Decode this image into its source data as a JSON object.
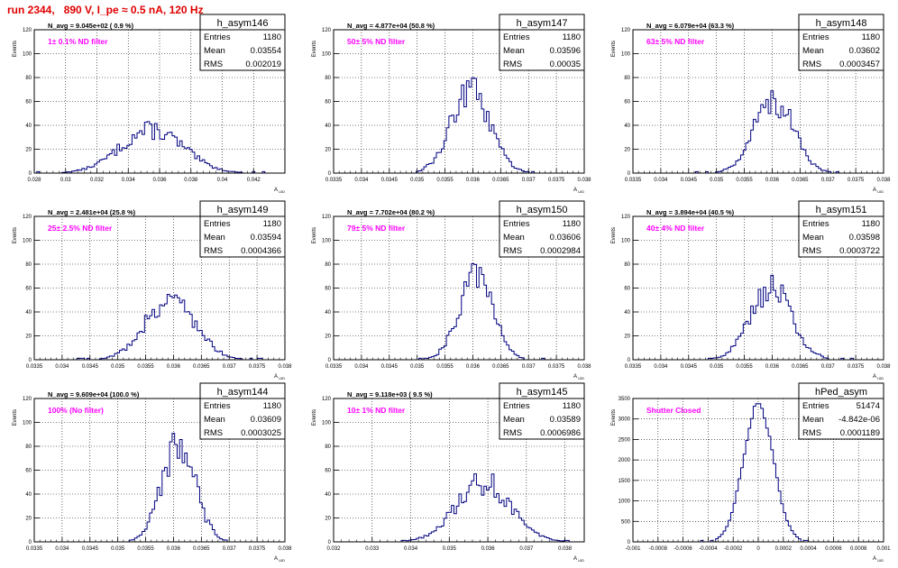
{
  "title": "run 2344,   890 V, I_pe ≈ 0.5 nA, 120 Hz",
  "y_axis_label": "Events",
  "x_axis_label": "A",
  "x_axis_subscript": "UID",
  "stat_labels": [
    "Entries",
    "Mean",
    "RMS"
  ],
  "colors": {
    "hist": "#000080",
    "annotation": "#ff00ff",
    "title": "#e00000",
    "grid": "#000000"
  },
  "chart_data": [
    {
      "type": "histogram",
      "name": "h_asym146",
      "navg": "N_avg = 9.045e+02 ( 0.9 %)",
      "filter": "1± 0.1% ND filter",
      "entries": "1180",
      "mean": "0.03554",
      "rms": "0.002019",
      "xlim": [
        0.028,
        0.044
      ],
      "ylim": [
        0,
        120
      ],
      "xticks": [
        "0.028",
        "0.03",
        "0.032",
        "0.034",
        "0.036",
        "0.038",
        "0.04",
        "0.042"
      ],
      "xtick_values": [
        0.028,
        0.03,
        0.032,
        0.034,
        0.036,
        0.038,
        0.04,
        0.042
      ],
      "yticks": [
        "0",
        "20",
        "40",
        "60",
        "80",
        "100",
        "120"
      ],
      "yticks_values": [
        0,
        20,
        40,
        60,
        80,
        100,
        120
      ],
      "center": 0.0355,
      "sigma": 0.002,
      "peak": 36
    },
    {
      "type": "histogram",
      "name": "h_asym147",
      "navg": "N_avg = 4.877e+04 (50.8 %)",
      "filter": "50± 5% ND filter",
      "entries": "1180",
      "mean": "0.03596",
      "rms": "0.00035",
      "xlim": [
        0.0335,
        0.038
      ],
      "ylim": [
        0,
        120
      ],
      "xticks": [
        "0.0335",
        "0.034",
        "0.0345",
        "0.035",
        "0.0355",
        "0.036",
        "0.0365",
        "0.037",
        "0.0375",
        "0.038"
      ],
      "xtick_values": [
        0.0335,
        0.034,
        0.0345,
        0.035,
        0.0355,
        0.036,
        0.0365,
        0.037,
        0.0375,
        0.038
      ],
      "yticks": [
        "0",
        "20",
        "40",
        "60",
        "80",
        "100",
        "120"
      ],
      "yticks_values": [
        0,
        20,
        40,
        60,
        80,
        100,
        120
      ],
      "center": 0.03596,
      "sigma": 0.00035,
      "peak": 68
    },
    {
      "type": "histogram",
      "name": "h_asym148",
      "navg": "N_avg = 6.079e+04 (63.3 %)",
      "filter": "63± 5% ND filter",
      "entries": "1180",
      "mean": "0.03602",
      "rms": "0.0003457",
      "xlim": [
        0.0335,
        0.038
      ],
      "ylim": [
        0,
        120
      ],
      "xticks": [
        "0.0335",
        "0.034",
        "0.0345",
        "0.035",
        "0.0355",
        "0.036",
        "0.0365",
        "0.037",
        "0.0375",
        "0.038"
      ],
      "xtick_values": [
        0.0335,
        0.034,
        0.0345,
        0.035,
        0.0355,
        0.036,
        0.0365,
        0.037,
        0.0375,
        0.038
      ],
      "yticks": [
        "0",
        "20",
        "40",
        "60",
        "80",
        "100",
        "120"
      ],
      "yticks_values": [
        0,
        20,
        40,
        60,
        80,
        100,
        120
      ],
      "center": 0.03602,
      "sigma": 0.00035,
      "peak": 62
    },
    {
      "type": "histogram",
      "name": "h_asym149",
      "navg": "N_avg = 2.481e+04 (25.8 %)",
      "filter": "25± 2.5% ND filter",
      "entries": "1180",
      "mean": "0.03594",
      "rms": "0.0004366",
      "xlim": [
        0.0335,
        0.038
      ],
      "ylim": [
        0,
        120
      ],
      "xticks": [
        "0.0335",
        "0.034",
        "0.0345",
        "0.035",
        "0.0355",
        "0.036",
        "0.0365",
        "0.037",
        "0.0375",
        "0.038"
      ],
      "xtick_values": [
        0.0335,
        0.034,
        0.0345,
        0.035,
        0.0355,
        0.036,
        0.0365,
        0.037,
        0.0375,
        0.038
      ],
      "yticks": [
        "0",
        "20",
        "40",
        "60",
        "80",
        "100",
        "120"
      ],
      "yticks_values": [
        0,
        20,
        40,
        60,
        80,
        100,
        120
      ],
      "center": 0.03594,
      "sigma": 0.00044,
      "peak": 52
    },
    {
      "type": "histogram",
      "name": "h_asym150",
      "navg": "N_avg = 7.702e+04 (80.2 %)",
      "filter": "79± 5% ND filter",
      "entries": "1180",
      "mean": "0.03606",
      "rms": "0.0002984",
      "xlim": [
        0.0335,
        0.038
      ],
      "ylim": [
        0,
        120
      ],
      "xticks": [
        "0.0335",
        "0.034",
        "0.0345",
        "0.035",
        "0.0355",
        "0.036",
        "0.0365",
        "0.037",
        "0.0375",
        "0.038"
      ],
      "xtick_values": [
        0.0335,
        0.034,
        0.0345,
        0.035,
        0.0355,
        0.036,
        0.0365,
        0.037,
        0.0375,
        0.038
      ],
      "yticks": [
        "0",
        "20",
        "40",
        "60",
        "80",
        "100",
        "120"
      ],
      "yticks_values": [
        0,
        20,
        40,
        60,
        80,
        100,
        120
      ],
      "center": 0.03606,
      "sigma": 0.0003,
      "peak": 76
    },
    {
      "type": "histogram",
      "name": "h_asym151",
      "navg": "N_avg = 3.894e+04 (40.5 %)",
      "filter": "40± 4% ND filter",
      "entries": "1180",
      "mean": "0.03598",
      "rms": "0.0003722",
      "xlim": [
        0.0335,
        0.038
      ],
      "ylim": [
        0,
        120
      ],
      "xticks": [
        "0.0335",
        "0.034",
        "0.0345",
        "0.035",
        "0.0355",
        "0.036",
        "0.0365",
        "0.037",
        "0.0375",
        "0.038"
      ],
      "xtick_values": [
        0.0335,
        0.034,
        0.0345,
        0.035,
        0.0355,
        0.036,
        0.0365,
        0.037,
        0.0375,
        0.038
      ],
      "yticks": [
        "0",
        "20",
        "40",
        "60",
        "80",
        "100",
        "120"
      ],
      "yticks_values": [
        0,
        20,
        40,
        60,
        80,
        100,
        120
      ],
      "center": 0.03598,
      "sigma": 0.00037,
      "peak": 60
    },
    {
      "type": "histogram",
      "name": "h_asym144",
      "navg": "N_avg = 9.609e+04 (100.0 %)",
      "filter": "100% (No filter)",
      "entries": "1180",
      "mean": "0.03609",
      "rms": "0.0003025",
      "xlim": [
        0.0335,
        0.038
      ],
      "ylim": [
        0,
        120
      ],
      "xticks": [
        "0.0335",
        "0.034",
        "0.0345",
        "0.035",
        "0.0355",
        "0.036",
        "0.0365",
        "0.037",
        "0.0375",
        "0.038"
      ],
      "xtick_values": [
        0.0335,
        0.034,
        0.0345,
        0.035,
        0.0355,
        0.036,
        0.0365,
        0.037,
        0.0375,
        0.038
      ],
      "yticks": [
        "0",
        "20",
        "40",
        "60",
        "80",
        "100",
        "120"
      ],
      "yticks_values": [
        0,
        20,
        40,
        60,
        80,
        100,
        120
      ],
      "center": 0.03609,
      "sigma": 0.0003,
      "peak": 80
    },
    {
      "type": "histogram",
      "name": "h_asym145",
      "navg": "N_avg = 9.118e+03 ( 9.5 %)",
      "filter": "10± 1% ND filter",
      "entries": "1180",
      "mean": "0.03589",
      "rms": "0.0006986",
      "xlim": [
        0.032,
        0.0385
      ],
      "ylim": [
        0,
        120
      ],
      "xticks": [
        "0.032",
        "0.033",
        "0.034",
        "0.035",
        "0.036",
        "0.037",
        "0.038"
      ],
      "xtick_values": [
        0.032,
        0.033,
        0.034,
        0.035,
        0.036,
        0.037,
        0.038
      ],
      "yticks": [
        "0",
        "20",
        "40",
        "60",
        "80",
        "100",
        "120"
      ],
      "yticks_values": [
        0,
        20,
        40,
        60,
        80,
        100,
        120
      ],
      "center": 0.03589,
      "sigma": 0.0007,
      "peak": 50
    },
    {
      "type": "histogram",
      "name": "hPed_asym",
      "navg": "",
      "filter": "Shutter Closed",
      "entries": "51474",
      "mean": "-4.842e-06",
      "rms": "0.0001189",
      "xlim": [
        -0.001,
        0.001
      ],
      "ylim": [
        0,
        3500
      ],
      "xticks": [
        "-0.001",
        "-0.0008",
        "-0.0006",
        "-0.0004",
        "-0.0002",
        "0",
        "0.0002",
        "0.0004",
        "0.0006",
        "0.0008",
        "0.001"
      ],
      "xtick_values": [
        -0.001,
        -0.0008,
        -0.0006,
        -0.0004,
        -0.0002,
        0,
        0.0002,
        0.0004,
        0.0006,
        0.0008,
        0.001
      ],
      "yticks": [
        "0",
        "500",
        "1000",
        "1500",
        "2000",
        "2500",
        "3000",
        "3500"
      ],
      "yticks_values": [
        0,
        500,
        1000,
        1500,
        2000,
        2500,
        3000,
        3500
      ],
      "center": 0.0,
      "sigma": 0.00012,
      "peak": 3350
    }
  ]
}
